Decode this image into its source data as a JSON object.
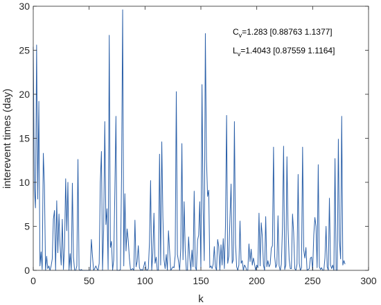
{
  "chart_data": {
    "type": "line",
    "xlabel": "k",
    "ylabel": "interevent times (day)",
    "xlim": [
      0,
      300
    ],
    "ylim": [
      0,
      30
    ],
    "xticks": [
      0,
      50,
      100,
      150,
      200,
      250,
      300
    ],
    "yticks": [
      0,
      5,
      10,
      15,
      20,
      25,
      30
    ],
    "grid": false,
    "line_color": "#2a5fa8",
    "annotations": [
      {
        "base": "C",
        "sub": "v",
        "text": "=1.283 [0.88763 1.1377]"
      },
      {
        "base": "L",
        "sub": "v",
        "text": "=1.4043 [0.87559 1.1164]"
      }
    ],
    "series": [
      {
        "values": [
          25.4,
          9.3,
          7.1,
          25.6,
          8.1,
          19.2,
          0.5,
          2.1,
          0.1,
          13.3,
          9.7,
          0.0,
          1.6,
          0.2,
          0.5,
          0.0,
          0.5,
          1.3,
          5.8,
          6.8,
          0.0,
          7.9,
          2.0,
          6.4,
          2.8,
          0.6,
          5.8,
          0.1,
          2.7,
          10.4,
          4.5,
          10.0,
          0.0,
          1.9,
          0.0,
          9.9,
          1.5,
          0.0,
          0.0,
          0.5,
          12.6,
          0.1,
          0.0,
          0.1,
          0.0,
          0.0,
          0.0,
          0.0,
          0.0,
          0.0,
          0.0,
          0.0,
          3.5,
          1.6,
          0.0,
          0.2,
          0.5,
          0.2,
          0.0,
          0.8,
          10.0,
          13.5,
          0.0,
          4.7,
          16.9,
          5.2,
          7.0,
          0.1,
          26.7,
          2.6,
          3.3,
          0.0,
          1.2,
          8.9,
          17.5,
          0.0,
          0.0,
          0.0,
          0.1,
          10.6,
          29.6,
          0.5,
          8.7,
          2.2,
          4.7,
          3.4,
          1.4,
          0.1,
          0.1,
          0.2,
          0.0,
          5.7,
          0.4,
          1.0,
          2.8,
          0.3,
          0.0,
          0.1,
          0.0,
          0.5,
          1.0,
          0.1,
          0.0,
          0.2,
          3.2,
          10.2,
          0.0,
          1.9,
          6.5,
          0.8,
          1.5,
          0.0,
          0.0,
          13.2,
          0.6,
          14.6,
          6.0,
          1.2,
          0.2,
          1.8,
          0.0,
          4.5,
          2.2,
          0.0,
          0.2,
          0.4,
          0.3,
          1.7,
          20.3,
          1.8,
          1.0,
          0.0,
          2.5,
          14.4,
          1.2,
          7.8,
          2.2,
          0.0,
          0.0,
          3.8,
          1.5,
          0.0,
          2.3,
          0.4,
          9.0,
          0.4,
          0.0,
          3.4,
          4.0,
          7.8,
          0.2,
          21.1,
          7.0,
          1.1,
          26.9,
          12.6,
          8.4,
          9.1,
          0.3,
          0.5,
          0.2,
          0.7,
          2.7,
          0.4,
          0.0,
          3.5,
          2.7,
          0.0,
          2.9,
          0.6,
          3.6,
          0.2,
          5.0,
          17.6,
          0.8,
          1.6,
          5.9,
          9.8,
          0.8,
          1.2,
          16.9,
          3.0,
          0.4,
          0.0,
          0.6,
          5.6,
          0.8,
          1.1,
          0.0,
          0.6,
          0.4,
          0.0,
          0.0,
          3.0,
          1.0,
          2.4,
          0.6,
          1.4,
          0.7,
          0.0,
          0.6,
          0.3,
          6.5,
          0.5,
          5.4,
          3.8,
          0.6,
          0.0,
          6.1,
          0.4,
          1.1,
          0.4,
          0.7,
          2.5,
          2.8,
          14.0,
          1.6,
          0.3,
          0.7,
          6.2,
          0.5,
          0.0,
          0.7,
          4.9,
          14.1,
          0.1,
          0.6,
          12.9,
          4.7,
          1.2,
          0.2,
          0.2,
          6.4,
          4.3,
          0.2,
          0.0,
          0.7,
          10.9,
          0.8,
          0.0,
          0.3,
          14.0,
          2.3,
          1.4,
          2.6,
          0.0,
          0.1,
          0.2,
          1.4,
          1.5,
          0.0,
          4.0,
          6.0,
          5.0,
          0.3,
          12.0,
          0.4,
          0.1,
          0.3,
          0.0,
          0.0,
          1.4,
          5.0,
          0.4,
          0.0,
          8.2,
          0.6,
          0.2,
          0.6,
          0.0,
          12.7,
          0.0,
          0.0,
          14.9,
          3.4,
          1.3,
          17.5,
          0.6,
          1.1,
          0.7
        ]
      }
    ]
  }
}
